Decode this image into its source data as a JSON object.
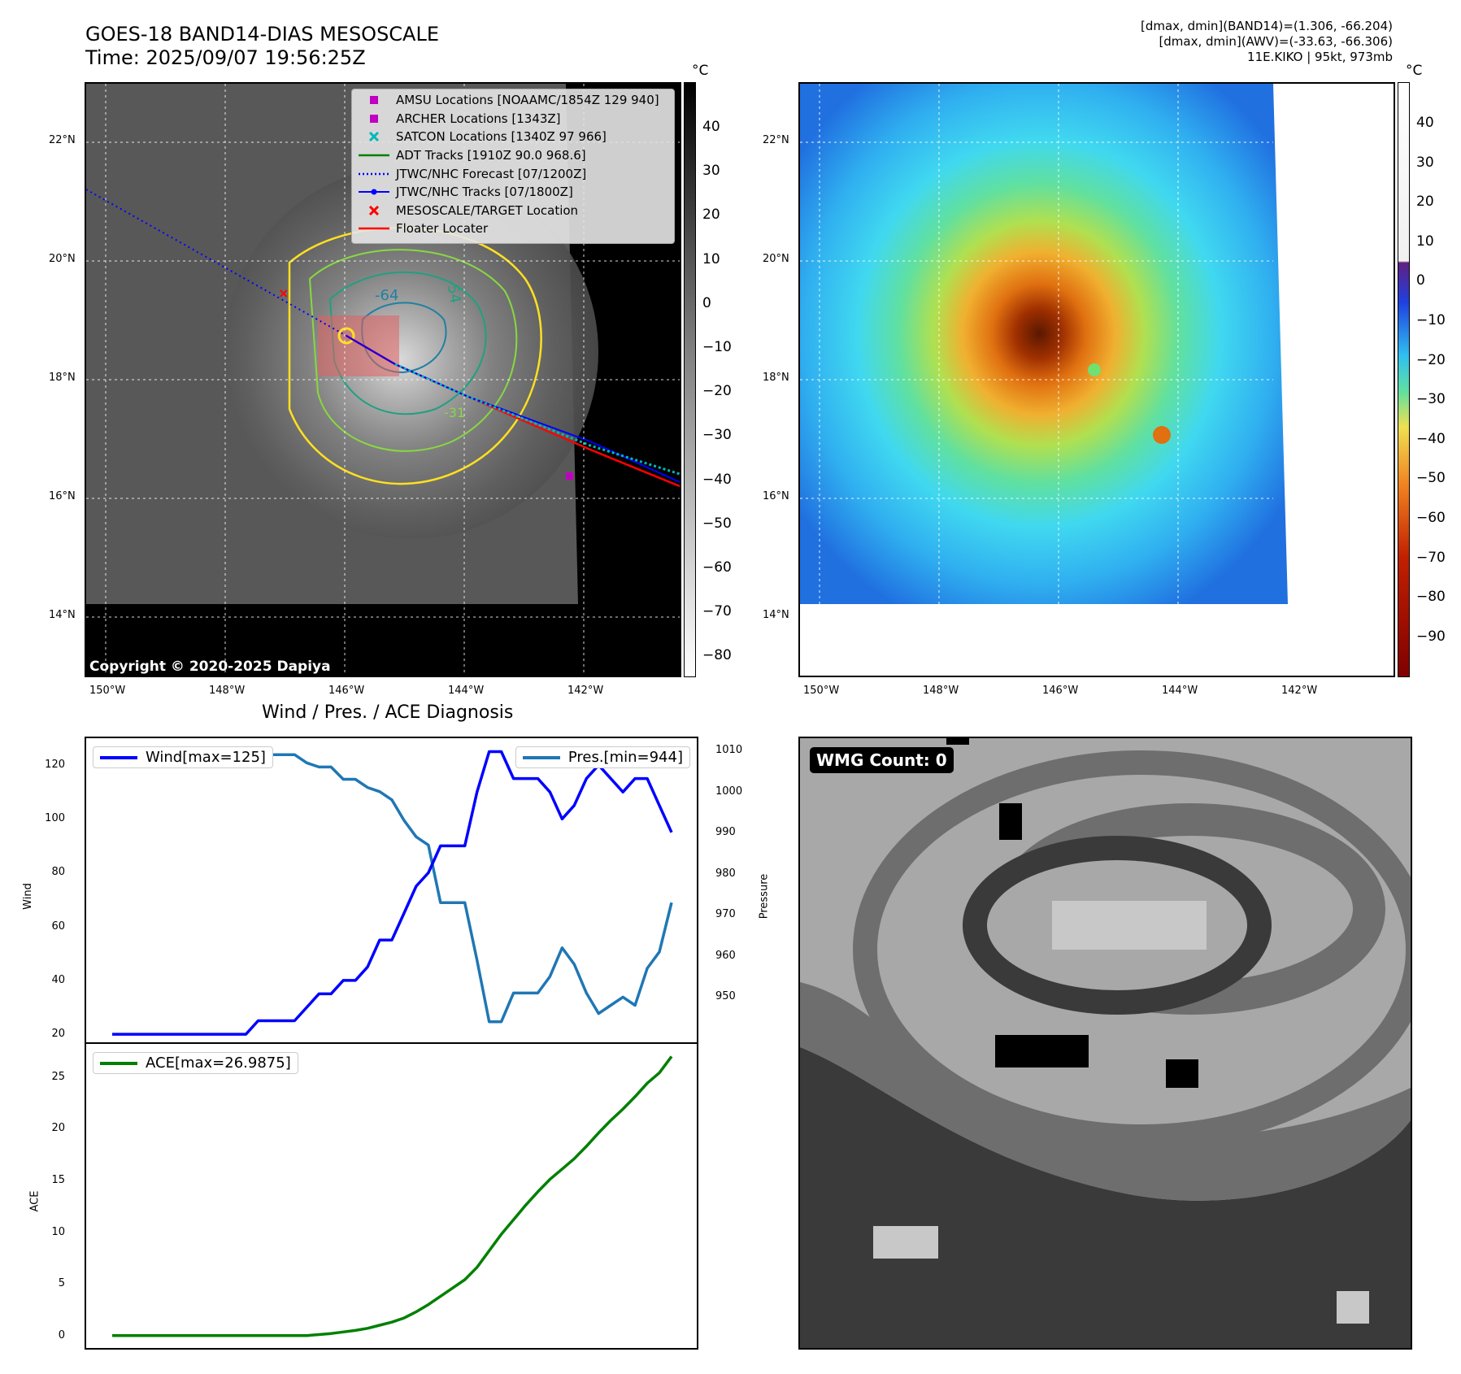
{
  "header": {
    "title_line1": "GOES-18 BAND14-DIAS MESOSCALE",
    "title_line2": "Time: 2025/09/07 19:56:25Z",
    "info_line1": "[dmax, dmin](BAND14)=(1.306, -66.204)",
    "info_line2": "[dmax, dmin](AWV)=(-33.63, -66.306)",
    "info_line3": "11E.KIKO | 95kt, 973mb"
  },
  "map_axes": {
    "lon_ticks": [
      "150°W",
      "148°W",
      "146°W",
      "144°W",
      "142°W"
    ],
    "lat_ticks": [
      "22°N",
      "20°N",
      "18°N",
      "16°N",
      "14°N"
    ]
  },
  "ir_panel": {
    "copyright": "Copyright © 2020-2025 Dapiya",
    "contour_labels": [
      "-64",
      "-54",
      "-31"
    ],
    "legend": [
      {
        "label": "AMSU Locations [NOAAMC/1854Z 129 940]",
        "symbol": "square",
        "color": "#c000c0"
      },
      {
        "label": "ARCHER Locations [1343Z]",
        "symbol": "square",
        "color": "#c000c0"
      },
      {
        "label": "SATCON Locations [1340Z 97 966]",
        "symbol": "x",
        "color": "#00b8b8"
      },
      {
        "label": "ADT Tracks [1910Z 90.0 968.6]",
        "symbol": "line",
        "color": "#008000"
      },
      {
        "label": "JTWC/NHC Forecast [07/1200Z]",
        "symbol": "dotted",
        "color": "#0000ff"
      },
      {
        "label": "JTWC/NHC Tracks [07/1800Z]",
        "symbol": "linedot",
        "color": "#0000ff"
      },
      {
        "label": "MESOSCALE/TARGET Location",
        "symbol": "x",
        "color": "#ff0000"
      },
      {
        "label": "Floater Locater",
        "symbol": "line",
        "color": "#ff0000"
      }
    ]
  },
  "colorbar_gray": {
    "unit": "°C",
    "labels": [
      "40",
      "30",
      "20",
      "10",
      "0",
      "−10",
      "−20",
      "−30",
      "−40",
      "−50",
      "−60",
      "−70",
      "−80"
    ]
  },
  "colorbar_color": {
    "unit": "°C",
    "labels": [
      "40",
      "30",
      "20",
      "10",
      "0",
      "−10",
      "−20",
      "−30",
      "−40",
      "−50",
      "−60",
      "−70",
      "−80",
      "−90"
    ]
  },
  "wmg_panel": {
    "badge": "WMG Count: 0"
  },
  "chart_data": [
    {
      "type": "line",
      "title": "Wind / Pres. / ACE Diagnosis",
      "ylabel": "Wind",
      "ylabel_right": "Pressure",
      "ylim": [
        17,
        130
      ],
      "ylim_right": [
        939,
        1013
      ],
      "yticks": [
        20,
        40,
        60,
        80,
        100,
        120
      ],
      "yticks_right": [
        950,
        960,
        970,
        980,
        990,
        1000,
        1010
      ],
      "series": [
        {
          "name": "Wind[max=125]",
          "axis": "left",
          "color": "#0000ff",
          "values": [
            20,
            20,
            20,
            20,
            20,
            20,
            20,
            20,
            20,
            20,
            20,
            20,
            25,
            25,
            25,
            25,
            30,
            35,
            35,
            40,
            40,
            45,
            55,
            55,
            65,
            75,
            80,
            90,
            90,
            90,
            110,
            125,
            125,
            115,
            115,
            115,
            110,
            100,
            105,
            115,
            120,
            115,
            110,
            115,
            115,
            105,
            95
          ]
        },
        {
          "name": "Pres.[min=944]",
          "axis": "right",
          "color": "#1f77b4",
          "values": [
            1010,
            1010,
            1010,
            1010,
            1010,
            1010,
            1010,
            1010,
            1010,
            1010,
            1010,
            1010,
            1009,
            1009,
            1009,
            1009,
            1007,
            1006,
            1006,
            1003,
            1003,
            1001,
            1000,
            998,
            993,
            989,
            987,
            973,
            973,
            973,
            959,
            944,
            944,
            951,
            951,
            951,
            955,
            962,
            958,
            951,
            946,
            948,
            950,
            948,
            957,
            961,
            973
          ]
        }
      ]
    },
    {
      "type": "line",
      "ylabel": "ACE",
      "ylim": [
        -1.2,
        28.2
      ],
      "yticks": [
        0,
        5,
        10,
        15,
        20,
        25
      ],
      "series": [
        {
          "name": "ACE[max=26.9875]",
          "color": "#008000",
          "values": [
            0,
            0,
            0,
            0,
            0,
            0,
            0,
            0,
            0,
            0,
            0,
            0,
            0,
            0,
            0,
            0,
            0,
            0.1,
            0.2,
            0.35,
            0.5,
            0.7,
            1.0,
            1.3,
            1.7,
            2.3,
            3.0,
            3.8,
            4.6,
            5.4,
            6.6,
            8.2,
            9.8,
            11.2,
            12.6,
            13.9,
            15.1,
            16.1,
            17.1,
            18.3,
            19.6,
            20.8,
            21.9,
            23.1,
            24.4,
            25.4,
            26.9875
          ]
        }
      ]
    }
  ]
}
